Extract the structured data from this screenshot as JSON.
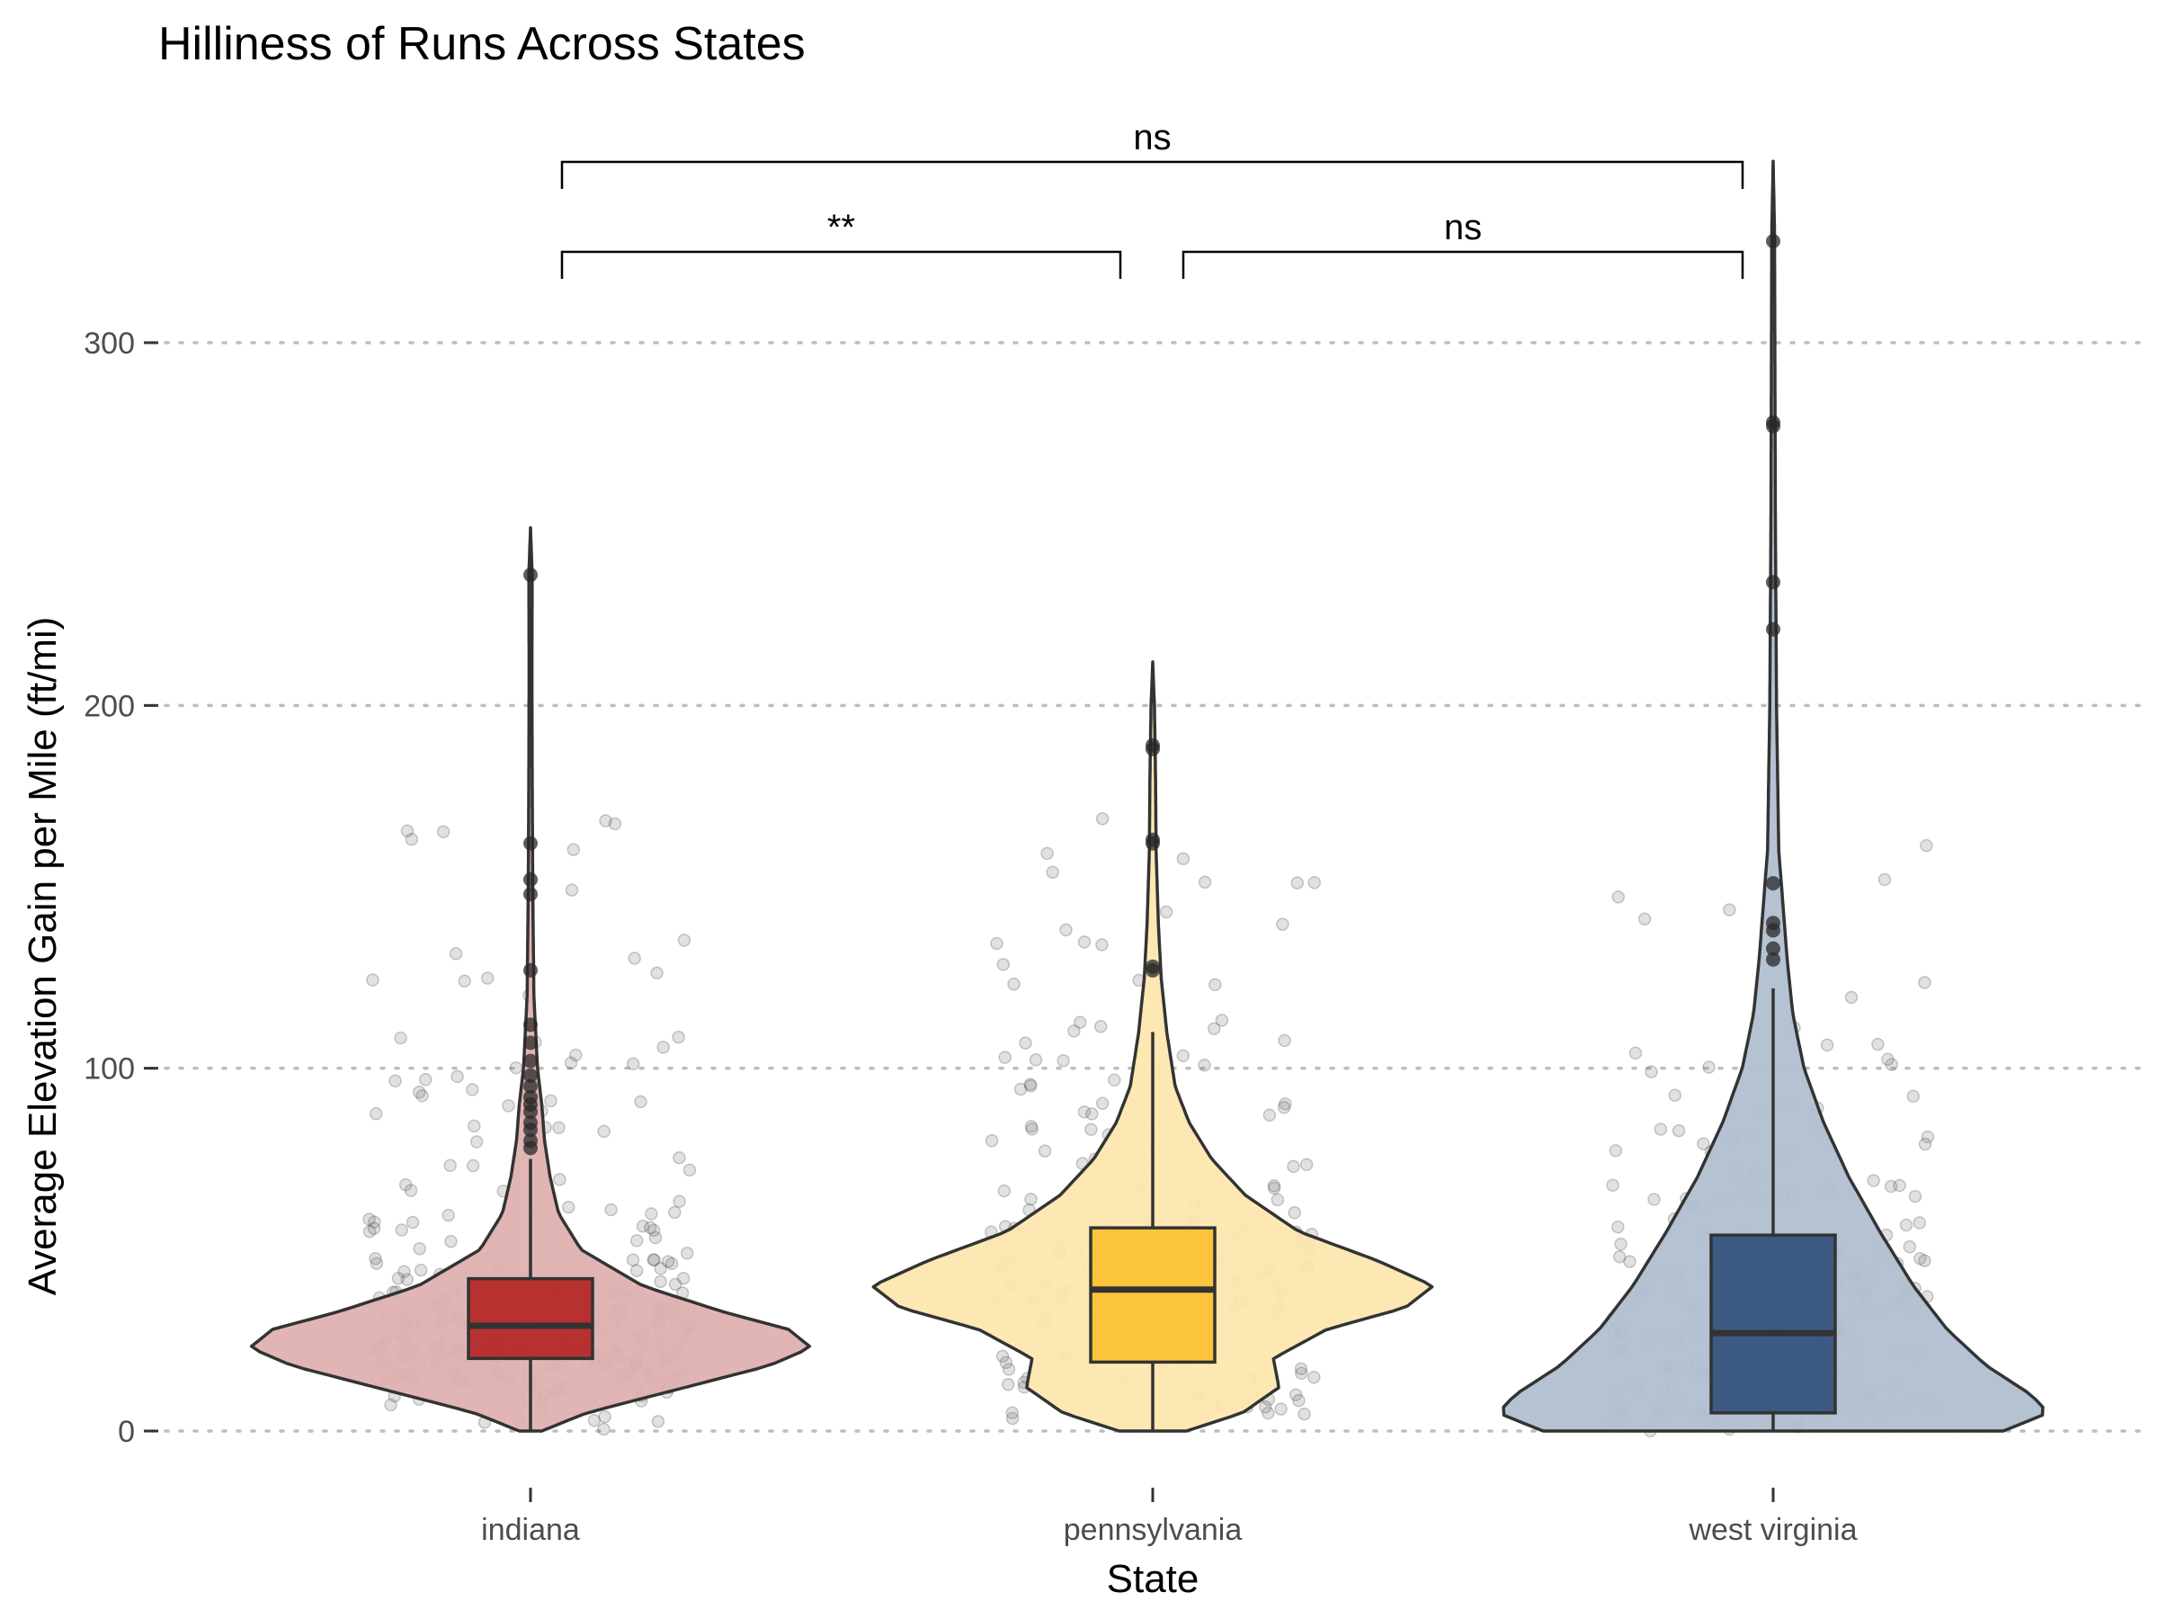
{
  "chart_data": {
    "type": "violin",
    "title": "Hilliness of Runs Across States",
    "xlabel": "State",
    "ylabel": "Average Elevation Gain per Mile (ft/mi)",
    "ylim": [
      -12,
      345
    ],
    "yticks": [
      0,
      100,
      200,
      300
    ],
    "grid": "horizontal dotted",
    "categories": [
      "indiana",
      "pennsylvania",
      "west virginia"
    ],
    "series": [
      {
        "category": "indiana",
        "violin_color": "#e0b1b1",
        "box_color": "#b22222",
        "box": {
          "min": 0,
          "q1": 20,
          "median": 29,
          "q3": 42,
          "max": 75
        },
        "outliers": [
          78,
          80,
          83,
          85,
          88,
          90,
          92,
          95,
          98,
          102,
          107,
          112,
          127,
          148,
          152,
          162,
          236
        ],
        "density": [
          [
            0,
            0.04
          ],
          [
            5,
            0.2
          ],
          [
            12,
            0.55
          ],
          [
            18,
            0.85
          ],
          [
            23,
            1.0
          ],
          [
            28,
            0.92
          ],
          [
            33,
            0.68
          ],
          [
            40,
            0.4
          ],
          [
            50,
            0.18
          ],
          [
            60,
            0.1
          ],
          [
            70,
            0.07
          ],
          [
            80,
            0.05
          ],
          [
            90,
            0.04
          ],
          [
            100,
            0.025
          ],
          [
            120,
            0.012
          ],
          [
            150,
            0.008
          ],
          [
            180,
            0.006
          ],
          [
            210,
            0.005
          ],
          [
            236,
            0.006
          ],
          [
            249,
            0
          ]
        ],
        "max_value": 249
      },
      {
        "category": "pennsylvania",
        "violin_color": "#fde7b0",
        "box_color": "#fbc02d",
        "box": {
          "min": 0,
          "q1": 19,
          "median": 39,
          "q3": 56,
          "max": 110
        },
        "outliers": [
          127,
          128,
          162,
          163,
          188,
          189
        ],
        "density": [
          [
            0,
            0.12
          ],
          [
            5,
            0.32
          ],
          [
            12,
            0.45
          ],
          [
            20,
            0.43
          ],
          [
            28,
            0.62
          ],
          [
            34,
            0.9
          ],
          [
            40,
            1.0
          ],
          [
            47,
            0.8
          ],
          [
            55,
            0.52
          ],
          [
            65,
            0.33
          ],
          [
            75,
            0.21
          ],
          [
            85,
            0.13
          ],
          [
            95,
            0.08
          ],
          [
            110,
            0.05
          ],
          [
            125,
            0.03
          ],
          [
            140,
            0.02
          ],
          [
            160,
            0.012
          ],
          [
            180,
            0.01
          ],
          [
            200,
            0.006
          ],
          [
            212,
            0
          ]
        ],
        "max_value": 212
      },
      {
        "category": "west virginia",
        "violin_color": "#b0bfcf",
        "box_color": "#2f4f7a",
        "box": {
          "min": 0,
          "q1": 5,
          "median": 27,
          "q3": 54,
          "max": 122
        },
        "outliers": [
          130,
          133,
          138,
          140,
          151,
          221,
          234,
          277,
          278,
          328
        ],
        "density": [
          [
            0,
            0.82
          ],
          [
            5,
            0.98
          ],
          [
            10,
            0.92
          ],
          [
            18,
            0.76
          ],
          [
            28,
            0.62
          ],
          [
            40,
            0.5
          ],
          [
            55,
            0.38
          ],
          [
            70,
            0.27
          ],
          [
            85,
            0.18
          ],
          [
            100,
            0.11
          ],
          [
            115,
            0.07
          ],
          [
            130,
            0.05
          ],
          [
            145,
            0.035
          ],
          [
            160,
            0.02
          ],
          [
            200,
            0.012
          ],
          [
            250,
            0.008
          ],
          [
            300,
            0.006
          ],
          [
            330,
            0.005
          ],
          [
            350,
            0
          ]
        ],
        "max_value": 350
      }
    ],
    "comparisons": [
      {
        "from": "indiana",
        "to": "pennsylvania",
        "label": "**",
        "level": 1
      },
      {
        "from": "pennsylvania",
        "to": "west virginia",
        "label": "ns",
        "level": 1
      },
      {
        "from": "indiana",
        "to": "west virginia",
        "label": "ns",
        "level": 2
      }
    ]
  }
}
